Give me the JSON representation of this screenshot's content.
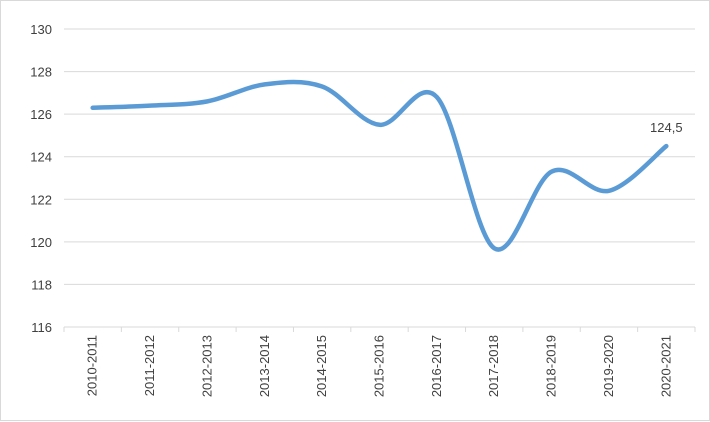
{
  "chart_data": {
    "type": "line",
    "title": "",
    "xlabel": "",
    "ylabel": "",
    "categories": [
      "2010-2011",
      "2011-2012",
      "2012-2013",
      "2013-2014",
      "2014-2015",
      "2015-2016",
      "2016-2017",
      "2017-2018",
      "2018-2019",
      "2019-2020",
      "2020-2021"
    ],
    "series": [
      {
        "values": [
          126.3,
          126.4,
          126.6,
          127.4,
          127.3,
          125.5,
          126.8,
          119.7,
          123.3,
          122.4,
          124.5
        ]
      }
    ],
    "ylim": [
      116,
      130
    ],
    "yticks": [
      116,
      118,
      120,
      122,
      124,
      126,
      128,
      130
    ],
    "grid": true,
    "legend": "none",
    "line_color": "#5b9bd5",
    "data_labels": [
      {
        "index": 10,
        "text": "124,5"
      }
    ]
  }
}
